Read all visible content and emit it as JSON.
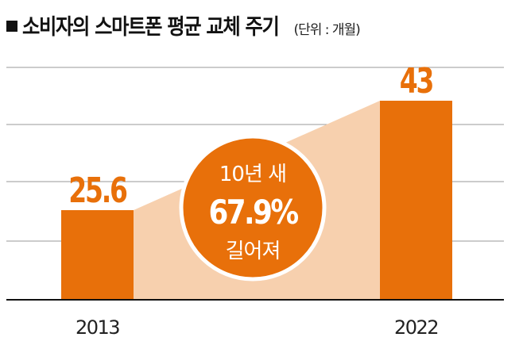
{
  "chart_data": {
    "type": "bar",
    "title": "소비자의 스마트폰 평균 교체 주기",
    "unit_label": "(단위 : 개월)",
    "categories": [
      "2013",
      "2022"
    ],
    "values": [
      25.6,
      43
    ],
    "data_labels": [
      "25.6",
      "43"
    ],
    "grid": true,
    "annotation": {
      "line1": "10년 새",
      "line2": "67.9%",
      "line3": "길어져"
    },
    "colors": {
      "bar": "#e8700a",
      "area": "#f7d0ae",
      "circle": "#e8700a",
      "grid": "#9a9a9a"
    }
  }
}
